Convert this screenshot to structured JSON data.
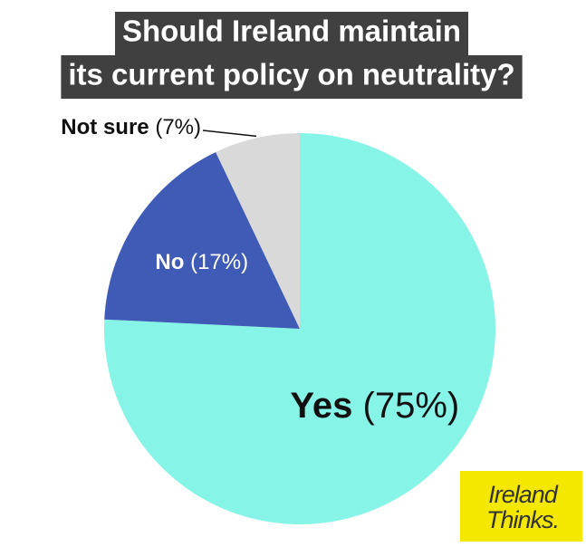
{
  "chart_data": {
    "type": "pie",
    "title": [
      "Should Ireland maintain",
      "its current policy on neutrality?"
    ],
    "categories": [
      "Yes",
      "No",
      "Not sure"
    ],
    "values": [
      75,
      17,
      7
    ],
    "value_labels": [
      "(75%)",
      "(17%)",
      "(7%)"
    ],
    "colors": [
      "#86f5e8",
      "#3f5bb5",
      "#d9d9d9"
    ]
  },
  "logo": [
    "Ireland",
    "Thinks."
  ]
}
